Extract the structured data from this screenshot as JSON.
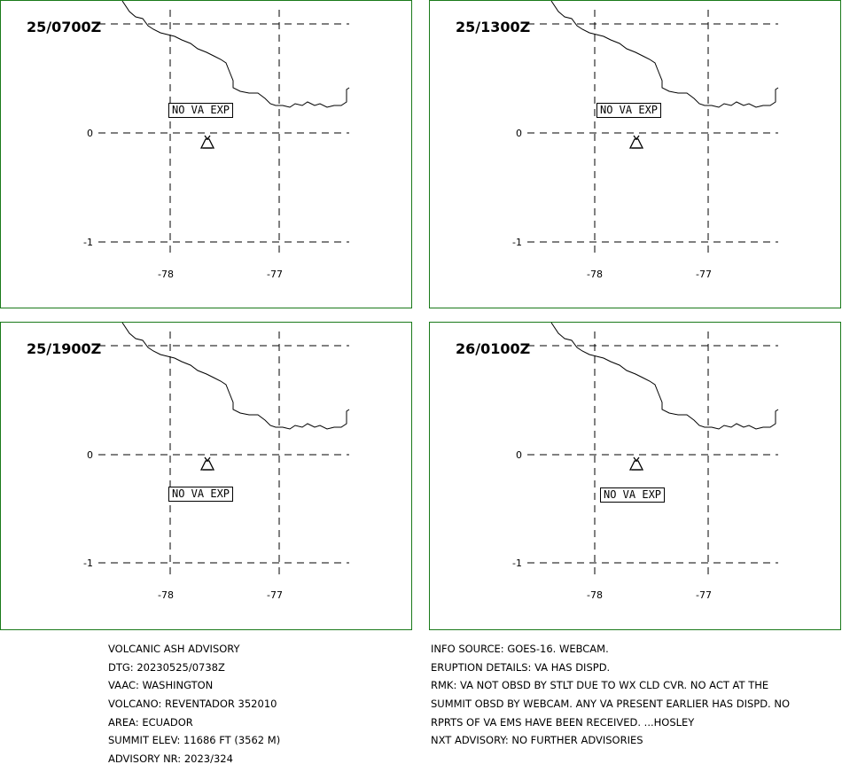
{
  "panels": [
    {
      "time": "25/0700Z",
      "va_text": "NO VA EXP"
    },
    {
      "time": "25/1300Z",
      "va_text": "NO VA EXP"
    },
    {
      "time": "25/1900Z",
      "va_text": "NO VA EXP"
    },
    {
      "time": "26/0100Z",
      "va_text": "NO VA EXP"
    }
  ],
  "axes": {
    "lat_labels": [
      "0",
      "-1"
    ],
    "lon_labels": [
      "-78",
      "-77"
    ]
  },
  "advisory_left": [
    "VOLCANIC ASH ADVISORY",
    "DTG: 20230525/0738Z",
    "VAAC: WASHINGTON",
    "VOLCANO: REVENTADOR 352010",
    "AREA: ECUADOR",
    "SUMMIT ELEV: 11686 FT (3562 M)",
    "ADVISORY NR: 2023/324"
  ],
  "advisory_right": [
    "INFO SOURCE: GOES-16. WEBCAM.",
    "ERUPTION DETAILS: VA HAS DISPD.",
    "RMK: VA NOT OBSD BY STLT DUE TO WX CLD CVR. NO ACT AT THE",
    "SUMMIT OBSD BY WEBCAM. ANY VA PRESENT EARLIER HAS DISPD. NO",
    "RPRTS OF VA EMS HAVE BEEN RECEIVED. ...HOSLEY",
    "NXT ADVISORY: NO FURTHER ADVISORIES"
  ],
  "colors": {
    "frame": "#1a7a1a",
    "lines": "#000000"
  },
  "icons": {
    "volcano": "volcano-icon"
  }
}
